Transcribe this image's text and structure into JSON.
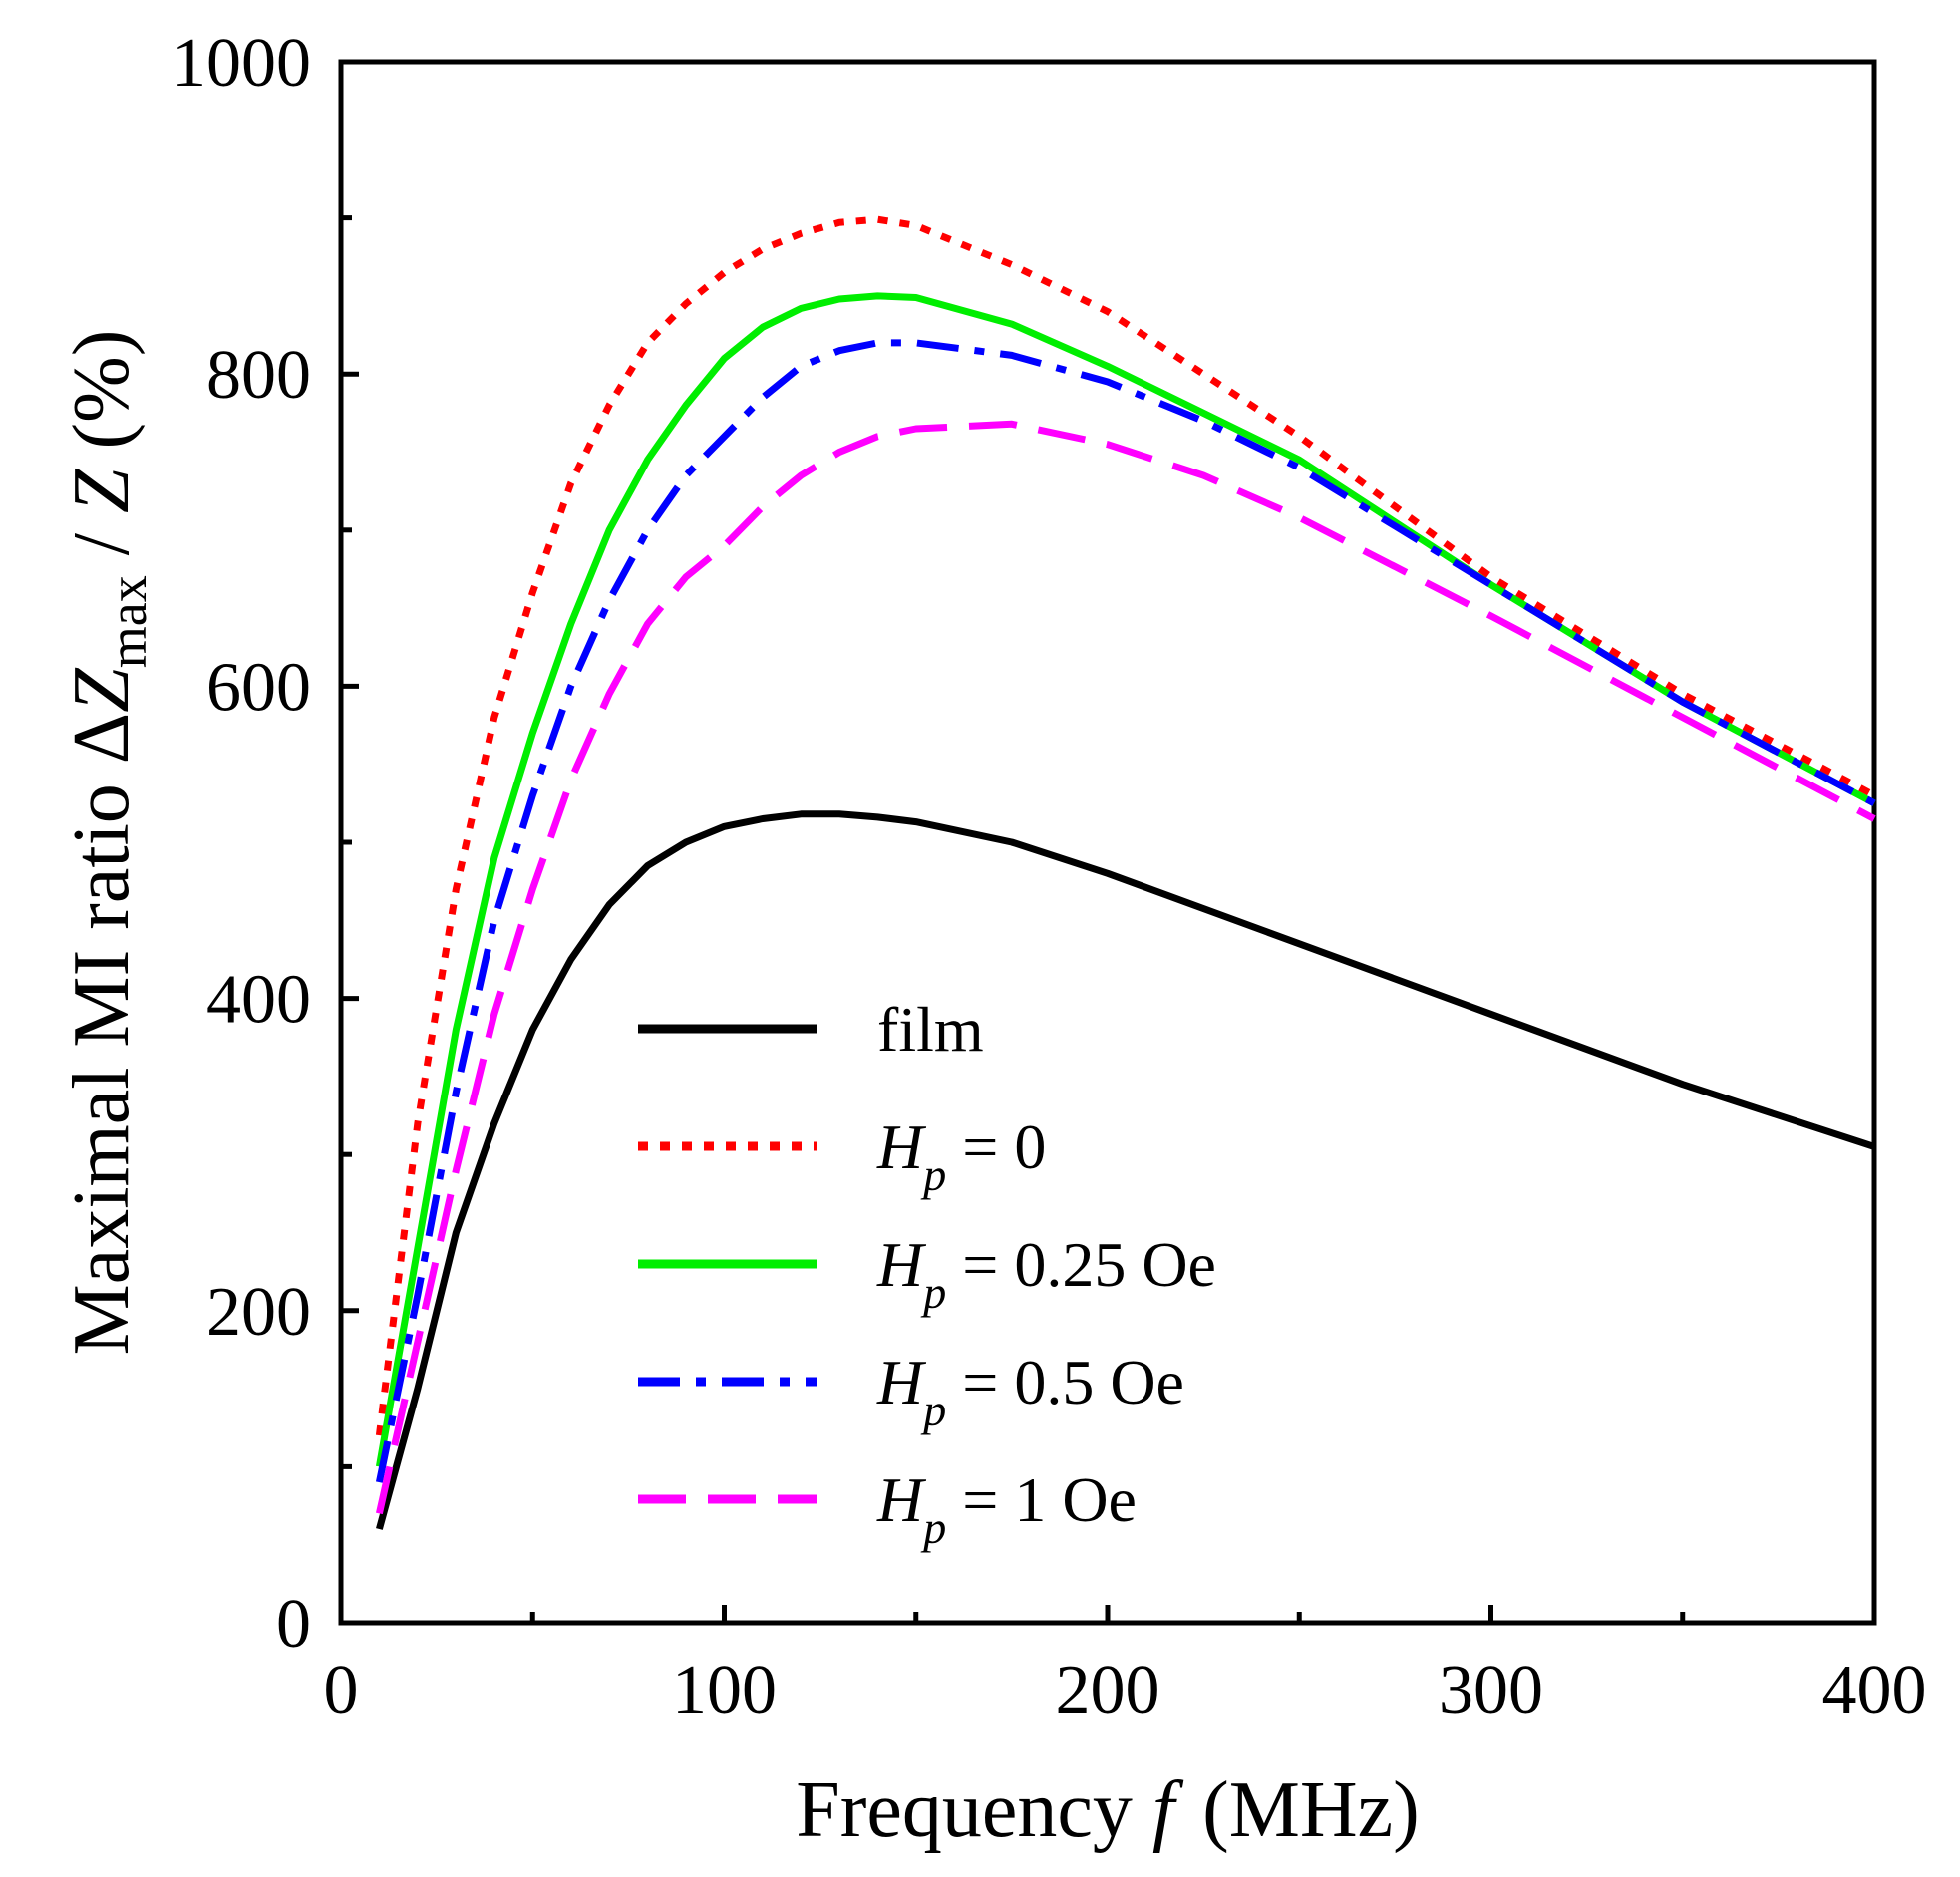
{
  "chart_data": {
    "type": "line",
    "xlabel": {
      "main": "Frequency ",
      "var": "f",
      "units": "(MHz)"
    },
    "ylabel": {
      "prefix": "Maximal MI ratio  Δ",
      "var1": "Z",
      "sub": "max",
      "mid": " / ",
      "var2": "Z",
      "units": " (%)"
    },
    "xlim": [
      0,
      400
    ],
    "ylim": [
      0,
      1000
    ],
    "xticks": [
      0,
      100,
      200,
      300,
      400
    ],
    "yticks": [
      0,
      200,
      400,
      600,
      800,
      1000
    ],
    "grid": false,
    "legend_position": "lower-middle",
    "series": [
      {
        "name": "film",
        "label_var": "",
        "label_sub": "",
        "label_rest": "film",
        "color": "#000000",
        "dash": "solid",
        "x": [
          10,
          20,
          30,
          40,
          50,
          60,
          70,
          80,
          90,
          100,
          110,
          120,
          130,
          140,
          150,
          175,
          200,
          250,
          300,
          350,
          400
        ],
        "y": [
          60,
          150,
          250,
          320,
          380,
          425,
          460,
          485,
          500,
          510,
          515,
          518,
          518,
          516,
          513,
          500,
          480,
          435,
          390,
          345,
          305
        ]
      },
      {
        "name": "Hp = 0",
        "label_var": "H",
        "label_sub": "p",
        "label_rest": " = 0",
        "color": "#ff0000",
        "dash": "dot",
        "x": [
          10,
          20,
          30,
          40,
          50,
          60,
          70,
          80,
          90,
          100,
          110,
          120,
          130,
          140,
          150,
          175,
          200,
          225,
          250,
          300,
          350,
          400
        ],
        "y": [
          120,
          320,
          470,
          580,
          660,
          730,
          780,
          820,
          845,
          865,
          880,
          890,
          897,
          899,
          895,
          870,
          840,
          800,
          760,
          670,
          595,
          530
        ]
      },
      {
        "name": "Hp = 0.25 Oe",
        "label_var": "H",
        "label_sub": "p",
        "label_rest": " = 0.25 Oe",
        "color": "#00ee00",
        "dash": "solid",
        "x": [
          10,
          20,
          30,
          40,
          50,
          60,
          70,
          80,
          90,
          100,
          110,
          120,
          130,
          140,
          150,
          175,
          200,
          225,
          250,
          300,
          350,
          400
        ],
        "y": [
          100,
          240,
          380,
          490,
          570,
          640,
          700,
          745,
          780,
          810,
          830,
          842,
          848,
          850,
          849,
          832,
          805,
          775,
          745,
          665,
          590,
          525
        ]
      },
      {
        "name": "Hp = 0.5 Oe",
        "label_var": "H",
        "label_sub": "p",
        "label_rest": " = 0.5 Oe",
        "color": "#0000ff",
        "dash": "dashdot",
        "x": [
          10,
          20,
          30,
          40,
          50,
          60,
          70,
          80,
          90,
          100,
          110,
          120,
          130,
          140,
          150,
          175,
          200,
          225,
          250,
          300,
          350,
          400
        ],
        "y": [
          90,
          210,
          340,
          450,
          530,
          600,
          655,
          700,
          735,
          760,
          785,
          805,
          815,
          820,
          820,
          812,
          795,
          770,
          740,
          665,
          590,
          525
        ]
      },
      {
        "name": "Hp = 1 Oe",
        "label_var": "H",
        "label_sub": "p",
        "label_rest": " = 1 Oe",
        "color": "#ff00ff",
        "dash": "dash",
        "x": [
          10,
          20,
          30,
          40,
          50,
          60,
          70,
          80,
          90,
          100,
          110,
          120,
          130,
          140,
          150,
          175,
          200,
          225,
          250,
          300,
          350,
          400
        ],
        "y": [
          70,
          180,
          290,
          390,
          470,
          540,
          595,
          640,
          670,
          690,
          715,
          735,
          750,
          760,
          765,
          768,
          755,
          735,
          708,
          645,
          580,
          515
        ]
      }
    ]
  }
}
